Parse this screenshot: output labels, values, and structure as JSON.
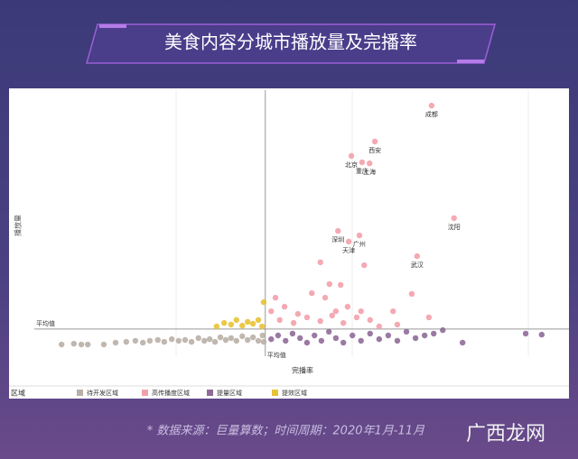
{
  "chart_data": {
    "type": "scatter",
    "title": "美食内容分城市播放量及完播率",
    "x_label": "完播率",
    "y_label": "播放量",
    "xlim": [
      0,
      100
    ],
    "ylim": [
      0,
      100
    ],
    "average": {
      "label": "平均值",
      "x": 43.2,
      "y": 10.2
    },
    "legend_title": "区域",
    "series": [
      {
        "name": "待开发区域",
        "color": "#b9afa6",
        "x": [
          5.1,
          7.4,
          8.8,
          10.0,
          13.0,
          15.2,
          17.2,
          18.9,
          20.3,
          21.6,
          23.1,
          24.3,
          25.7,
          27.0,
          28.2,
          29.4,
          30.7,
          31.8,
          32.8,
          33.8,
          34.8,
          35.8,
          36.8,
          37.8,
          38.9,
          39.9,
          40.9,
          41.9,
          42.7,
          42.9
        ],
        "values": [
          4.4,
          4.7,
          4.4,
          4.4,
          4.4,
          5.1,
          5.4,
          5.8,
          5.1,
          5.8,
          6.1,
          5.4,
          6.4,
          5.8,
          6.1,
          5.4,
          6.8,
          5.8,
          6.4,
          5.4,
          7.1,
          6.1,
          6.8,
          5.8,
          7.5,
          6.1,
          7.1,
          5.8,
          7.8,
          5.4
        ]
      },
      {
        "name": "高传播度区域",
        "color": "#f3a0ab",
        "x": [
          74.3,
          63.7,
          59.3,
          61.3,
          62.7,
          78.5,
          56.8,
          60.8,
          58.8,
          71.6,
          53.5,
          61.7,
          57.3,
          70.6,
          44.3,
          46.8,
          49.3,
          51.9,
          54.4,
          56.4,
          58.6,
          61.1,
          45.9,
          48.5,
          51.0,
          53.5,
          55.7,
          57.8,
          60.3,
          62.8,
          67.1,
          64.5,
          67.9,
          73.8,
          45.1,
          55.2
        ],
        "values": [
          94.2,
          80.7,
          75.3,
          72.9,
          72.5,
          51.9,
          47.1,
          45.4,
          43.1,
          37.6,
          35.3,
          34.2,
          26.8,
          23.4,
          16.9,
          18.6,
          15.9,
          23.7,
          22.0,
          16.9,
          18.6,
          16.9,
          13.6,
          12.5,
          14.6,
          13.2,
          15.3,
          12.5,
          14.6,
          13.6,
          16.9,
          11.2,
          11.9,
          14.6,
          22.0,
          27.1
        ],
        "labels": [
          "成都",
          "西安",
          "北京",
          "重庆",
          "上海",
          "沈阳",
          "深圳",
          "广州",
          "天津",
          "武汉",
          null,
          null,
          null,
          null,
          null,
          null,
          null,
          null,
          null,
          null,
          null,
          null,
          null,
          null,
          null,
          null,
          null,
          null,
          null,
          null,
          null,
          null,
          null,
          null,
          null,
          null
        ]
      },
      {
        "name": "提量区域",
        "color": "#8f6b98",
        "x": [
          44.3,
          45.6,
          47.0,
          48.3,
          49.7,
          51.0,
          52.4,
          53.7,
          55.1,
          56.4,
          57.8,
          59.5,
          61.1,
          62.8,
          64.5,
          66.2,
          67.9,
          69.6,
          71.3,
          73.0,
          74.7,
          76.4,
          80.1,
          91.9,
          94.9
        ],
        "values": [
          6.4,
          7.8,
          5.8,
          8.5,
          6.8,
          5.1,
          7.8,
          5.8,
          9.2,
          6.8,
          5.1,
          7.8,
          5.8,
          8.5,
          6.4,
          7.8,
          5.8,
          9.2,
          6.8,
          7.8,
          8.5,
          9.8,
          5.1,
          8.5,
          8.1
        ]
      },
      {
        "name": "提效区域",
        "color": "#e8c235",
        "x": [
          34.1,
          35.5,
          36.8,
          37.8,
          38.9,
          39.9,
          40.9,
          41.9,
          42.6,
          42.9
        ],
        "values": [
          11.2,
          12.5,
          11.9,
          13.6,
          11.5,
          12.9,
          12.2,
          13.6,
          11.2,
          20.3
        ]
      }
    ]
  },
  "footer": {
    "source": "* 数据来源：巨量算数；时间周期：2020年1月-11月",
    "watermark": "广西龙网"
  }
}
